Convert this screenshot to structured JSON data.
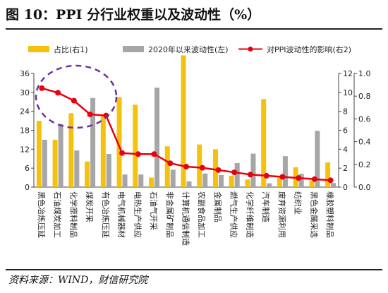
{
  "title": "图 10：PPI 分行业权重以及波动性（%）",
  "source": "资料来源：WIND，财信研究院",
  "colors": {
    "weight": "#F4C20D",
    "volatility": "#A6A6A6",
    "impact": "#E8000D",
    "ellipse": "#7030A0"
  },
  "chart_data": {
    "type": "bar",
    "categories": [
      "黑色冶炼压延",
      "石油煤炭加工",
      "化学原料制品",
      "煤炭开采",
      "有色冶炼压延",
      "电气机械器材",
      "电热生产供应",
      "石油气开采",
      "非金属矿制品",
      "计算机通信制造",
      "农副食品加工",
      "金属制品",
      "燃气生产供应",
      "化学纤维制造",
      "汽车制造",
      "废弃资源利用",
      "纺织业",
      "黑色金属采选",
      "橡胶塑料制品"
    ],
    "series": [
      {
        "name": "占比(右1)",
        "type": "bar",
        "axis": "right1",
        "values": [
          7.0,
          5.0,
          7.8,
          2.7,
          7.5,
          9.5,
          8.7,
          1.0,
          4.3,
          13.9,
          4.5,
          4.0,
          1.2,
          0.8,
          9.3,
          1.0,
          2.1,
          0.7,
          2.6
        ]
      },
      {
        "name": "2020年以来波动性(左)",
        "type": "bar",
        "axis": "left",
        "values": [
          15.0,
          20.0,
          11.6,
          28.2,
          10.5,
          4.0,
          4.0,
          31.5,
          5.5,
          1.8,
          4.3,
          3.8,
          7.6,
          10.6,
          1.2,
          9.8,
          4.2,
          17.8,
          1.3
        ]
      },
      {
        "name": "对PPI波动性的影响(右2)",
        "type": "line",
        "axis": "right2",
        "values": [
          0.87,
          0.83,
          0.76,
          0.64,
          0.63,
          0.3,
          0.29,
          0.29,
          0.21,
          0.18,
          0.17,
          0.15,
          0.13,
          0.11,
          0.1,
          0.09,
          0.08,
          0.07,
          0.06
        ]
      }
    ],
    "axes": {
      "left": {
        "min": 0,
        "max": 36,
        "ticks": [
          "0",
          "6",
          "12",
          "18",
          "24",
          "30",
          "36"
        ]
      },
      "right1": {
        "min": 0,
        "max": 12,
        "ticks": [
          "0",
          "2",
          "4",
          "6",
          "8",
          "10",
          "12"
        ]
      },
      "right2": {
        "min": 0,
        "max": 1.0,
        "ticks": [
          "0.0",
          "0.2",
          "0.4",
          "0.6",
          "0.8",
          "1.0"
        ]
      }
    },
    "legend_position": "top",
    "grid": false,
    "annotation": "dashed ellipse around the first five categories"
  }
}
